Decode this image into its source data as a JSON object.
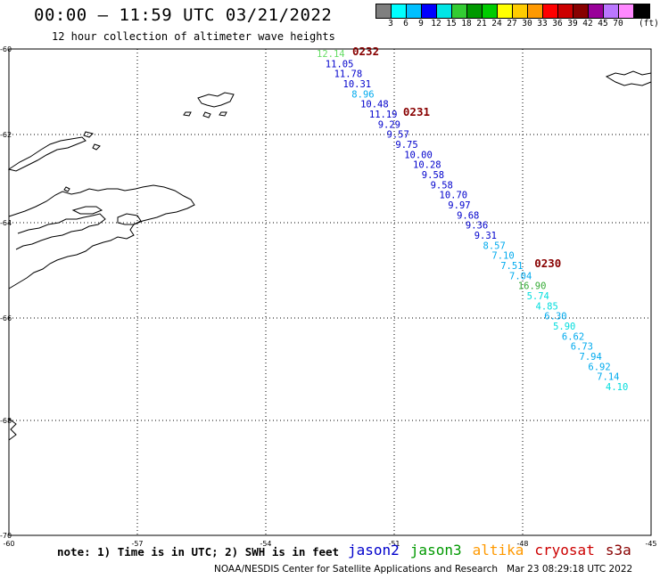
{
  "title": "00:00 – 11:59 UTC 03/21/2022",
  "subtitle": "12 hour collection of altimeter wave heights",
  "colorbar": {
    "colors": [
      "#7f7f7f",
      "#00ffff",
      "#00c0ff",
      "#0000ff",
      "#00e5e5",
      "#33cc33",
      "#009900",
      "#00cc00",
      "#ffff00",
      "#ffcc00",
      "#ff9900",
      "#ff0000",
      "#cc0000",
      "#880000",
      "#990099",
      "#bb77ff",
      "#ff88ff",
      "#000000"
    ],
    "labels": [
      "3",
      "6",
      "9",
      "12",
      "15",
      "18",
      "21",
      "24",
      "27",
      "30",
      "33",
      "36",
      "39",
      "42",
      "45",
      "70"
    ],
    "unit": "(ft)"
  },
  "map": {
    "lat_labels": [
      "-60",
      "-62",
      "-64",
      "-66",
      "-68",
      "-70"
    ],
    "lon_labels": [
      "-60",
      "-57",
      "-54",
      "-51",
      "-48",
      "-45"
    ]
  },
  "passes": [
    {
      "label": "0232",
      "color": "#880000"
    },
    {
      "label": "0231",
      "color": "#880000"
    },
    {
      "label": "0230",
      "color": "#880000"
    }
  ],
  "measurements": [
    {
      "v": "12.14",
      "c": "#66dd66"
    },
    {
      "v": "11.05",
      "c": "#0000cc"
    },
    {
      "v": "11.78",
      "c": "#0000cc"
    },
    {
      "v": "10.31",
      "c": "#0000cc"
    },
    {
      "v": "8.96",
      "c": "#00aaee"
    },
    {
      "v": "10.48",
      "c": "#0000cc"
    },
    {
      "v": "11.19",
      "c": "#0000cc"
    },
    {
      "v": "9.29",
      "c": "#0000cc"
    },
    {
      "v": "9.57",
      "c": "#0000cc"
    },
    {
      "v": "9.75",
      "c": "#0000cc"
    },
    {
      "v": "10.00",
      "c": "#0000cc"
    },
    {
      "v": "10.28",
      "c": "#0000cc"
    },
    {
      "v": "9.58",
      "c": "#0000cc"
    },
    {
      "v": "9.58",
      "c": "#0000cc"
    },
    {
      "v": "10.70",
      "c": "#0000cc"
    },
    {
      "v": "9.97",
      "c": "#0000cc"
    },
    {
      "v": "9.68",
      "c": "#0000cc"
    },
    {
      "v": "9.36",
      "c": "#0000cc"
    },
    {
      "v": "9.31",
      "c": "#0000cc"
    },
    {
      "v": "8.57",
      "c": "#00aaee"
    },
    {
      "v": "7.10",
      "c": "#00aaee"
    },
    {
      "v": "7.51",
      "c": "#00aaee"
    },
    {
      "v": "7.04",
      "c": "#00aaee"
    },
    {
      "v": "16.90",
      "c": "#33aa33"
    },
    {
      "v": "5.74",
      "c": "#00dddd"
    },
    {
      "v": "4.85",
      "c": "#00dddd"
    },
    {
      "v": "6.30",
      "c": "#00aaee"
    },
    {
      "v": "5.90",
      "c": "#00dddd"
    },
    {
      "v": "6.62",
      "c": "#00aaee"
    },
    {
      "v": "6.73",
      "c": "#00aaee"
    },
    {
      "v": "7.94",
      "c": "#00aaee"
    },
    {
      "v": "6.92",
      "c": "#00aaee"
    },
    {
      "v": "7.14",
      "c": "#00aaee"
    },
    {
      "v": "4.10",
      "c": "#00dddd"
    }
  ],
  "note": "note: 1) Time is in UTC; 2) SWH is in feet",
  "satellites": [
    {
      "name": "jason2",
      "color": "#0000cc"
    },
    {
      "name": "jason3",
      "color": "#009900"
    },
    {
      "name": "altika",
      "color": "#ff9900"
    },
    {
      "name": "cryosat",
      "color": "#cc0000"
    },
    {
      "name": "s3a",
      "color": "#880000"
    }
  ],
  "footer": "NOAA/NESDIS Center for Satellite Applications and Research   Mar 23 08:29:18 UTC 2022"
}
